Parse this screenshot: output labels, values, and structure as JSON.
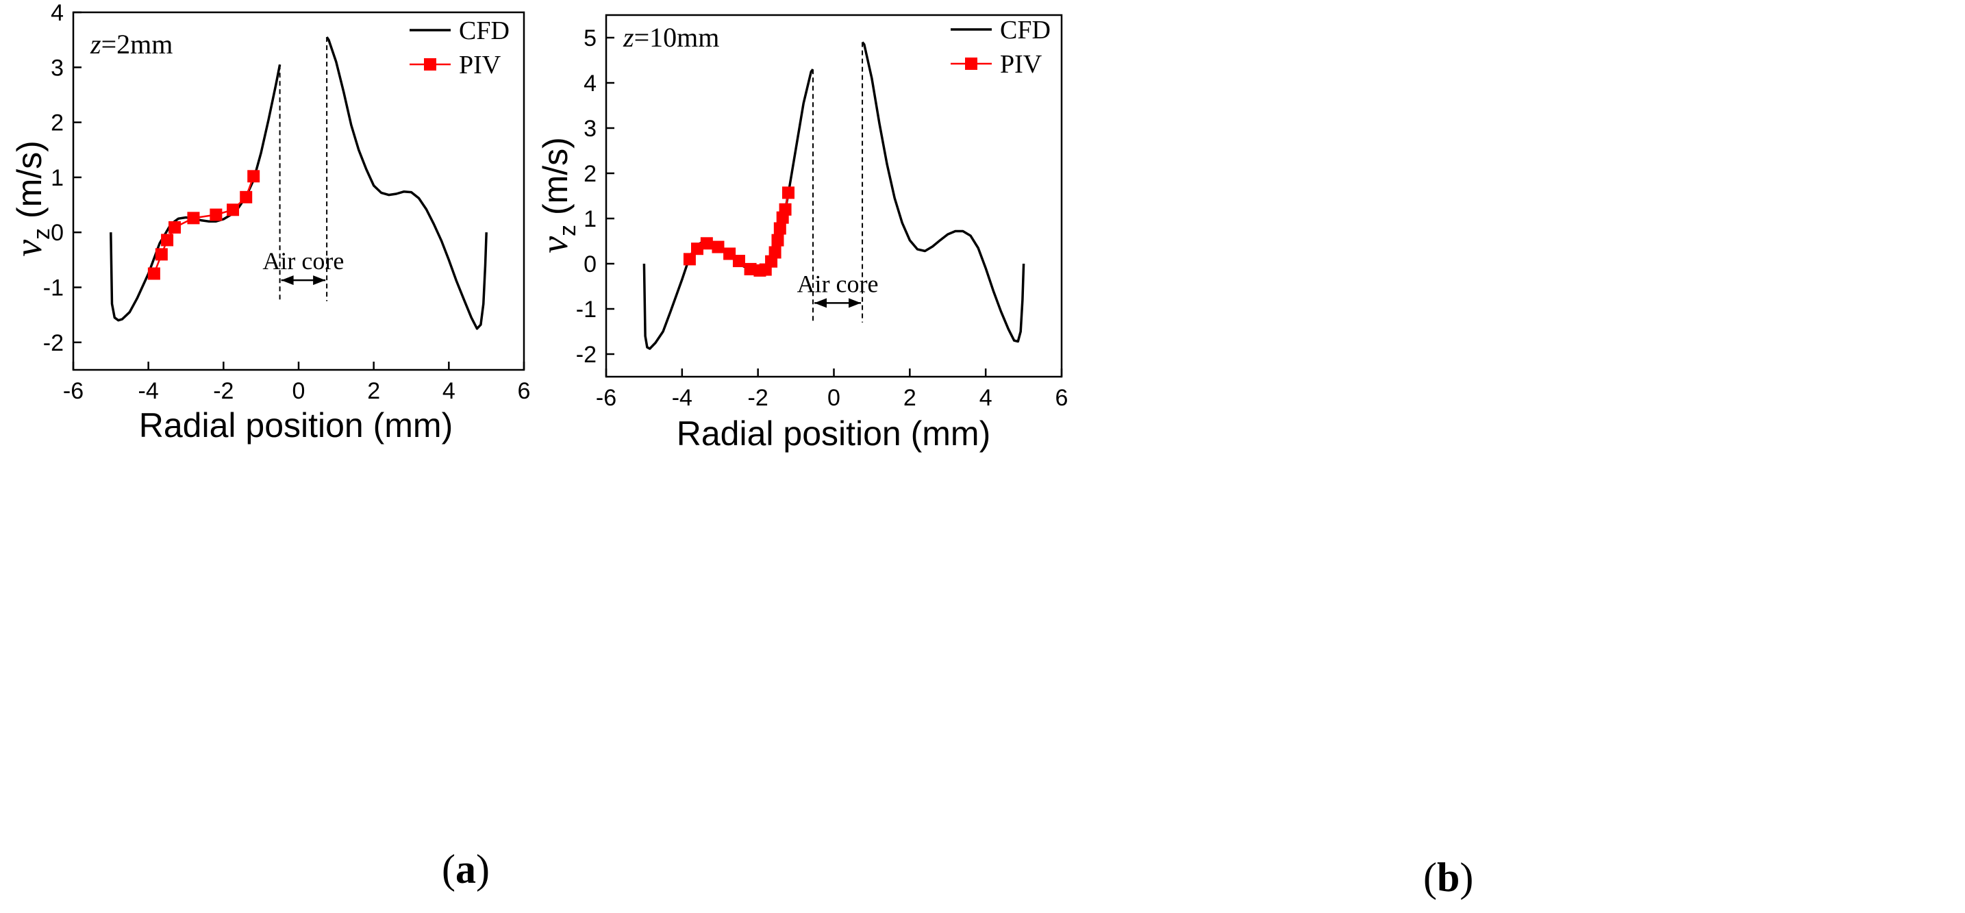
{
  "figure": {
    "caption_a_open": "(",
    "caption_a_letter": "a",
    "caption_a_close": ")",
    "caption_b_open": "(",
    "caption_b_letter": "b",
    "caption_b_close": ")"
  },
  "colors": {
    "cfd": "#000000",
    "piv": "#ff0000",
    "axis": "#000000"
  },
  "chart_data": [
    {
      "type": "line",
      "panel": "a",
      "annotation": {
        "z_symbol": "z",
        "z_value": "=2mm"
      },
      "xlabel": "Radial position (mm)",
      "ylabel_symbol": "v",
      "ylabel_sub": "z",
      "ylabel_unit": " (m/s)",
      "xlim": [
        -6,
        6
      ],
      "ylim": [
        -2.5,
        4
      ],
      "xticks": [
        -6,
        -4,
        -2,
        0,
        2,
        4,
        6
      ],
      "yticks": [
        -2,
        -1,
        0,
        1,
        2,
        3,
        4
      ],
      "legend": {
        "position": "top-right",
        "entries": [
          "CFD",
          "PIV"
        ]
      },
      "air_core": {
        "label": "Air core",
        "x_left": -0.5,
        "x_right": 0.75,
        "y_bottom": -1.25,
        "arrow_y": -0.87
      },
      "series": [
        {
          "name": "CFD",
          "style": "line",
          "x": [
            -5.0,
            -4.97,
            -4.9,
            -4.8,
            -4.7,
            -4.5,
            -4.3,
            -4.0,
            -3.7,
            -3.4,
            -3.2,
            -3.0,
            -2.8,
            -2.6,
            -2.4,
            -2.2,
            -2.0,
            -1.8,
            -1.6,
            -1.4,
            -1.2,
            -1.0,
            -0.8,
            -0.6,
            -0.5
          ],
          "y": [
            0.0,
            -1.3,
            -1.55,
            -1.6,
            -1.58,
            -1.45,
            -1.2,
            -0.75,
            -0.2,
            0.15,
            0.25,
            0.27,
            0.25,
            0.22,
            0.2,
            0.2,
            0.24,
            0.32,
            0.45,
            0.65,
            0.95,
            1.45,
            2.05,
            2.7,
            3.05
          ]
        },
        {
          "name": "CFD",
          "style": "line",
          "x": [
            0.75,
            0.8,
            1.0,
            1.2,
            1.4,
            1.6,
            1.8,
            2.0,
            2.2,
            2.4,
            2.6,
            2.8,
            3.0,
            3.2,
            3.4,
            3.6,
            3.8,
            4.0,
            4.2,
            4.4,
            4.6,
            4.75,
            4.85,
            4.92,
            4.97,
            5.0
          ],
          "y": [
            3.55,
            3.5,
            3.1,
            2.55,
            1.95,
            1.5,
            1.15,
            0.85,
            0.72,
            0.68,
            0.7,
            0.74,
            0.73,
            0.62,
            0.42,
            0.15,
            -0.15,
            -0.5,
            -0.88,
            -1.22,
            -1.55,
            -1.75,
            -1.68,
            -1.3,
            -0.6,
            0.0
          ]
        },
        {
          "name": "PIV",
          "style": "line-square",
          "x": [
            -3.85,
            -3.65,
            -3.5,
            -3.3,
            -2.8,
            -2.2,
            -1.75,
            -1.4,
            -1.2
          ],
          "y": [
            -0.75,
            -0.4,
            -0.14,
            0.09,
            0.26,
            0.32,
            0.41,
            0.64,
            1.02
          ]
        }
      ]
    },
    {
      "type": "line",
      "panel": "b",
      "annotation": {
        "z_symbol": "z",
        "z_value": "=10mm"
      },
      "xlabel": "Radial position (mm)",
      "ylabel_symbol": "v",
      "ylabel_sub": "z",
      "ylabel_unit": " (m/s)",
      "xlim": [
        -6,
        6
      ],
      "ylim": [
        -2.5,
        5.5
      ],
      "xticks": [
        -6,
        -4,
        -2,
        0,
        2,
        4,
        6
      ],
      "yticks": [
        -2,
        -1,
        0,
        1,
        2,
        3,
        4,
        5
      ],
      "legend": {
        "position": "top-right",
        "entries": [
          "CFD",
          "PIV"
        ]
      },
      "air_core": {
        "label": "Air core",
        "x_left": -0.55,
        "x_right": 0.75,
        "y_bottom": -1.3,
        "arrow_y": -0.87
      },
      "series": [
        {
          "name": "CFD",
          "style": "line",
          "x": [
            -5.0,
            -4.97,
            -4.92,
            -4.85,
            -4.7,
            -4.5,
            -4.3,
            -4.0,
            -3.8,
            -3.6,
            -3.4,
            -3.2,
            -3.0,
            -2.8,
            -2.6,
            -2.4,
            -2.2,
            -2.0,
            -1.8,
            -1.6,
            -1.4,
            -1.2,
            -1.0,
            -0.8,
            -0.6,
            -0.55
          ],
          "y": [
            0.0,
            -1.6,
            -1.85,
            -1.88,
            -1.75,
            -1.5,
            -1.05,
            -0.35,
            0.15,
            0.42,
            0.5,
            0.48,
            0.4,
            0.25,
            0.1,
            -0.05,
            -0.13,
            -0.16,
            -0.1,
            0.15,
            0.65,
            1.55,
            2.55,
            3.55,
            4.25,
            4.3
          ]
        },
        {
          "name": "CFD",
          "style": "line",
          "x": [
            0.75,
            0.8,
            1.0,
            1.2,
            1.4,
            1.6,
            1.8,
            2.0,
            2.2,
            2.4,
            2.6,
            2.8,
            3.0,
            3.2,
            3.4,
            3.6,
            3.8,
            4.0,
            4.2,
            4.4,
            4.6,
            4.75,
            4.85,
            4.92,
            4.97,
            5.0
          ],
          "y": [
            4.9,
            4.85,
            4.1,
            3.1,
            2.2,
            1.45,
            0.9,
            0.52,
            0.32,
            0.28,
            0.38,
            0.52,
            0.65,
            0.72,
            0.72,
            0.62,
            0.35,
            -0.1,
            -0.6,
            -1.05,
            -1.45,
            -1.7,
            -1.72,
            -1.5,
            -0.8,
            0.0
          ]
        },
        {
          "name": "PIV",
          "style": "line-square",
          "x": [
            -3.8,
            -3.6,
            -3.35,
            -3.05,
            -2.75,
            -2.5,
            -2.2,
            -1.95,
            -1.8,
            -1.65,
            -1.55,
            -1.48,
            -1.42,
            -1.35,
            -1.28,
            -1.2
          ],
          "y": [
            0.1,
            0.33,
            0.45,
            0.37,
            0.22,
            0.06,
            -0.12,
            -0.15,
            -0.13,
            0.05,
            0.25,
            0.52,
            0.78,
            1.02,
            1.2,
            1.57
          ]
        }
      ]
    }
  ]
}
